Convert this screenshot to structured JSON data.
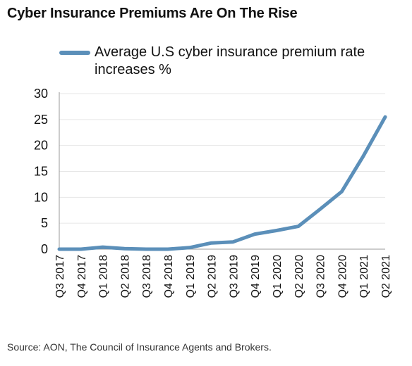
{
  "title": "Cyber Insurance Premiums Are On The Rise",
  "source": "Source: AON, The Council of Insurance Agents and Brokers.",
  "colors": {
    "series": "#5b8fb9",
    "axis": "#999999",
    "grid": "#e6e6e6"
  },
  "chart_data": {
    "type": "line",
    "categories": [
      "Q3 2017",
      "Q4 2017",
      "Q1 2018",
      "Q2 2018",
      "Q3 2018",
      "Q4 2018",
      "Q1 2019",
      "Q2 2019",
      "Q3 2019",
      "Q4 2019",
      "Q1 2020",
      "Q2 2020",
      "Q3 2020",
      "Q4 2020",
      "Q1 2021",
      "Q2 2021"
    ],
    "series": [
      {
        "name": "Average U.S cyber insurance premium rate increases %",
        "values": [
          0,
          0,
          0.4,
          0.1,
          0,
          0,
          0.3,
          1.2,
          1.4,
          2.9,
          3.6,
          4.4,
          7.7,
          11.1,
          18.0,
          25.5
        ]
      }
    ],
    "yticks": [
      "0",
      "5",
      "10",
      "15",
      "20",
      "25",
      "30"
    ],
    "ylim": [
      0,
      30
    ],
    "grid": "horizontal",
    "legend": "top"
  }
}
